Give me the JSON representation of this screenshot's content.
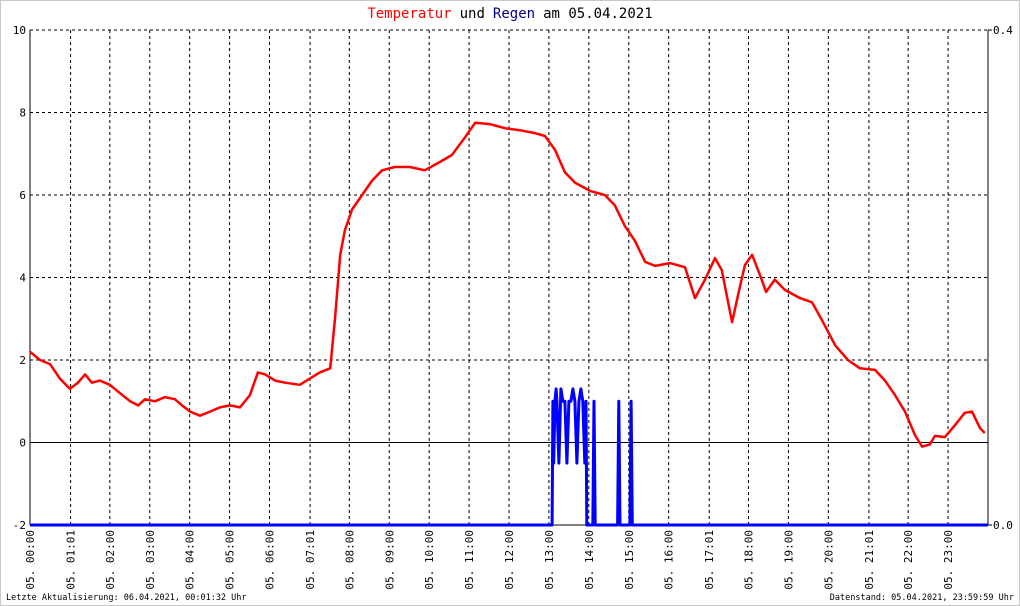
{
  "chart_data": {
    "type": "line",
    "title_words": [
      "und",
      "am 05.04.2021"
    ],
    "footer_left": "Letzte Aktualisierung: 06.04.2021, 00:01:32 Uhr",
    "footer_right": "Datenstand: 05.04.2021, 23:59:59 Uhr",
    "xlim": [
      0,
      24
    ],
    "xticks": [
      {
        "value": 0,
        "label": "05. 00:00"
      },
      {
        "value": 1.0167,
        "label": "05. 01:01"
      },
      {
        "value": 2,
        "label": "05. 02:00"
      },
      {
        "value": 3,
        "label": "05. 03:00"
      },
      {
        "value": 4,
        "label": "05. 04:00"
      },
      {
        "value": 5,
        "label": "05. 05:00"
      },
      {
        "value": 6,
        "label": "05. 06:00"
      },
      {
        "value": 7.0167,
        "label": "05. 07:01"
      },
      {
        "value": 8,
        "label": "05. 08:00"
      },
      {
        "value": 9,
        "label": "05. 09:00"
      },
      {
        "value": 10,
        "label": "05. 10:00"
      },
      {
        "value": 11,
        "label": "05. 11:00"
      },
      {
        "value": 12,
        "label": "05. 12:00"
      },
      {
        "value": 13,
        "label": "05. 13:00"
      },
      {
        "value": 14,
        "label": "05. 14:00"
      },
      {
        "value": 15,
        "label": "05. 15:00"
      },
      {
        "value": 16,
        "label": "05. 16:00"
      },
      {
        "value": 17.0167,
        "label": "05. 17:01"
      },
      {
        "value": 18,
        "label": "05. 18:00"
      },
      {
        "value": 19,
        "label": "05. 19:00"
      },
      {
        "value": 20,
        "label": "05. 20:00"
      },
      {
        "value": 21.0167,
        "label": "05. 21:01"
      },
      {
        "value": 22,
        "label": "05. 22:00"
      },
      {
        "value": 23,
        "label": "05. 23:00"
      }
    ],
    "ylim": [
      -2,
      10
    ],
    "yticks": [
      -2,
      0,
      2,
      4,
      6,
      8,
      10
    ],
    "y2lim": [
      0,
      0.4
    ],
    "y2ticks": [
      {
        "value": 0,
        "label": "0.0"
      },
      {
        "value": 0.4,
        "label": "0.4"
      }
    ],
    "grid": true,
    "series": [
      {
        "name": "Temperatur",
        "color": "#ff0000",
        "x": [
          0,
          0.25,
          0.5,
          0.75,
          1.0,
          1.2,
          1.38,
          1.55,
          1.75,
          2.0,
          2.25,
          2.51,
          2.71,
          2.88,
          3.13,
          3.38,
          3.63,
          3.81,
          4.01,
          4.26,
          4.51,
          4.76,
          5.01,
          5.26,
          5.51,
          5.71,
          5.89,
          6.14,
          6.39,
          6.76,
          7.01,
          7.26,
          7.52,
          7.64,
          7.77,
          7.89,
          8.07,
          8.32,
          8.57,
          8.82,
          9.14,
          9.52,
          9.89,
          10.27,
          10.57,
          10.9,
          11.15,
          11.52,
          11.9,
          12.27,
          12.65,
          12.9,
          13.15,
          13.4,
          13.65,
          14.03,
          14.4,
          14.65,
          14.9,
          15.15,
          15.41,
          15.66,
          16.03,
          16.41,
          16.66,
          16.91,
          17.16,
          17.33,
          17.48,
          17.59,
          17.74,
          17.91,
          18.09,
          18.29,
          18.44,
          18.66,
          18.91,
          19.29,
          19.59,
          19.84,
          20.17,
          20.49,
          20.79,
          21.17,
          21.42,
          21.67,
          21.92,
          22.17,
          22.35,
          22.54,
          22.67,
          22.92,
          23.17,
          23.42,
          23.6,
          23.8,
          23.92
        ],
        "values": [
          2.2,
          2.0,
          1.9,
          1.55,
          1.3,
          1.45,
          1.65,
          1.45,
          1.5,
          1.4,
          1.2,
          1.0,
          0.9,
          1.05,
          1.0,
          1.1,
          1.05,
          0.9,
          0.75,
          0.65,
          0.75,
          0.85,
          0.9,
          0.85,
          1.15,
          1.7,
          1.65,
          1.5,
          1.45,
          1.4,
          1.55,
          1.7,
          1.8,
          3.0,
          4.55,
          5.15,
          5.65,
          6.0,
          6.35,
          6.6,
          6.68,
          6.68,
          6.6,
          6.8,
          6.97,
          7.4,
          7.75,
          7.72,
          7.62,
          7.57,
          7.5,
          7.43,
          7.1,
          6.55,
          6.3,
          6.1,
          6.0,
          5.75,
          5.25,
          4.9,
          4.38,
          4.28,
          4.35,
          4.25,
          3.5,
          3.95,
          4.47,
          4.18,
          3.45,
          2.92,
          3.58,
          4.3,
          4.55,
          4.05,
          3.65,
          3.95,
          3.7,
          3.5,
          3.4,
          2.97,
          2.36,
          2.0,
          1.8,
          1.76,
          1.5,
          1.15,
          0.75,
          0.18,
          -0.1,
          -0.05,
          0.16,
          0.13,
          0.42,
          0.72,
          0.75,
          0.35,
          0.23
        ]
      },
      {
        "name": "Regen",
        "color": "#0000ff",
        "axis": "y2",
        "x": [
          0,
          13.08,
          13.1,
          13.12,
          13.15,
          13.18,
          13.2,
          13.25,
          13.3,
          13.35,
          13.4,
          13.45,
          13.5,
          13.55,
          13.6,
          13.65,
          13.7,
          13.75,
          13.8,
          13.85,
          13.9,
          13.93,
          13.95,
          14.1,
          14.13,
          14.16,
          14.72,
          14.75,
          14.78,
          15.03,
          15.06,
          15.09,
          24
        ],
        "values": [
          0,
          0,
          0.1,
          0.05,
          0.1,
          0.11,
          0.1,
          0.05,
          0.11,
          0.1,
          0.1,
          0.05,
          0.1,
          0.1,
          0.11,
          0.1,
          0.05,
          0.1,
          0.11,
          0.1,
          0.05,
          0.1,
          0,
          0,
          0.1,
          0,
          0,
          0.1,
          0,
          0,
          0.1,
          0,
          0
        ]
      }
    ]
  }
}
